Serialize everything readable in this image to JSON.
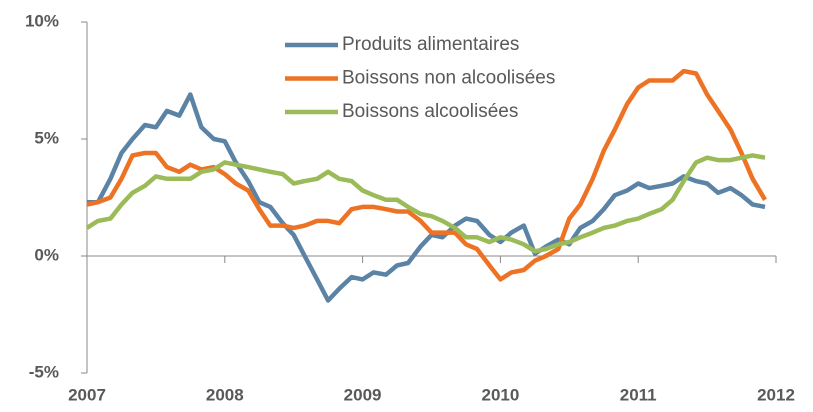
{
  "chart_data": {
    "type": "line",
    "x": [
      2007,
      2007.08,
      2007.17,
      2007.25,
      2007.33,
      2007.42,
      2007.5,
      2007.58,
      2007.67,
      2007.75,
      2007.83,
      2007.92,
      2008,
      2008.08,
      2008.17,
      2008.25,
      2008.33,
      2008.42,
      2008.5,
      2008.58,
      2008.67,
      2008.75,
      2008.83,
      2008.92,
      2009,
      2009.08,
      2009.17,
      2009.25,
      2009.33,
      2009.42,
      2009.5,
      2009.58,
      2009.67,
      2009.75,
      2009.83,
      2009.92,
      2010,
      2010.08,
      2010.17,
      2010.25,
      2010.33,
      2010.42,
      2010.5,
      2010.58,
      2010.67,
      2010.75,
      2010.83,
      2010.92,
      2011,
      2011.08,
      2011.17,
      2011.25,
      2011.33,
      2011.42,
      2011.5,
      2011.58,
      2011.67,
      2011.75,
      2011.83,
      2011.92
    ],
    "series": [
      {
        "name": "Produits alimentaires",
        "color": "#5b83a6",
        "values": [
          2.3,
          2.3,
          3.3,
          4.4,
          5.0,
          5.6,
          5.5,
          6.2,
          6.0,
          6.9,
          5.5,
          5.0,
          4.9,
          4.0,
          3.2,
          2.3,
          2.1,
          1.4,
          0.9,
          0.0,
          -1.0,
          -1.9,
          -1.4,
          -0.9,
          -1.0,
          -0.7,
          -0.8,
          -0.4,
          -0.3,
          0.4,
          0.9,
          0.8,
          1.3,
          1.6,
          1.5,
          0.9,
          0.6,
          1.0,
          1.3,
          0.1,
          0.4,
          0.7,
          0.5,
          1.2,
          1.5,
          2.0,
          2.6,
          2.8,
          3.1,
          2.9,
          3.0,
          3.1,
          3.4,
          3.2,
          3.1,
          2.7,
          2.9,
          2.6,
          2.2,
          2.1
        ]
      },
      {
        "name": "Boissons non alcoolisées",
        "color": "#ee7224",
        "values": [
          2.2,
          2.3,
          2.5,
          3.3,
          4.3,
          4.4,
          4.4,
          3.8,
          3.6,
          3.9,
          3.7,
          3.8,
          3.5,
          3.1,
          2.8,
          2.0,
          1.3,
          1.3,
          1.2,
          1.3,
          1.5,
          1.5,
          1.4,
          2.0,
          2.1,
          2.1,
          2.0,
          1.9,
          1.9,
          1.5,
          1.0,
          1.0,
          1.0,
          0.5,
          0.3,
          -0.4,
          -1.0,
          -0.7,
          -0.6,
          -0.2,
          0.0,
          0.3,
          1.6,
          2.2,
          3.3,
          4.5,
          5.4,
          6.5,
          7.2,
          7.5,
          7.5,
          7.5,
          7.9,
          7.8,
          6.9,
          6.2,
          5.4,
          4.4,
          3.3,
          2.4
        ]
      },
      {
        "name": "Boissons alcoolisées",
        "color": "#9bbb59",
        "values": [
          1.2,
          1.5,
          1.6,
          2.2,
          2.7,
          3.0,
          3.4,
          3.3,
          3.3,
          3.3,
          3.6,
          3.7,
          4.0,
          3.9,
          3.8,
          3.7,
          3.6,
          3.5,
          3.1,
          3.2,
          3.3,
          3.6,
          3.3,
          3.2,
          2.8,
          2.6,
          2.4,
          2.4,
          2.1,
          1.8,
          1.7,
          1.5,
          1.2,
          0.8,
          0.8,
          0.6,
          0.8,
          0.7,
          0.5,
          0.2,
          0.3,
          0.5,
          0.6,
          0.8,
          1.0,
          1.2,
          1.3,
          1.5,
          1.6,
          1.8,
          2.0,
          2.4,
          3.2,
          4.0,
          4.2,
          4.1,
          4.1,
          4.2,
          4.3,
          4.2
        ]
      }
    ],
    "xlim": [
      2007,
      2012
    ],
    "xticks": [
      2007,
      2008,
      2009,
      2010,
      2011,
      2012
    ],
    "ylim": [
      -5,
      10
    ],
    "yticks": [
      {
        "value": -5,
        "label": "-5%"
      },
      {
        "value": 0,
        "label": "0%"
      },
      {
        "value": 5,
        "label": "5%"
      },
      {
        "value": 10,
        "label": "10%"
      }
    ],
    "grid": false,
    "legend": "top"
  }
}
